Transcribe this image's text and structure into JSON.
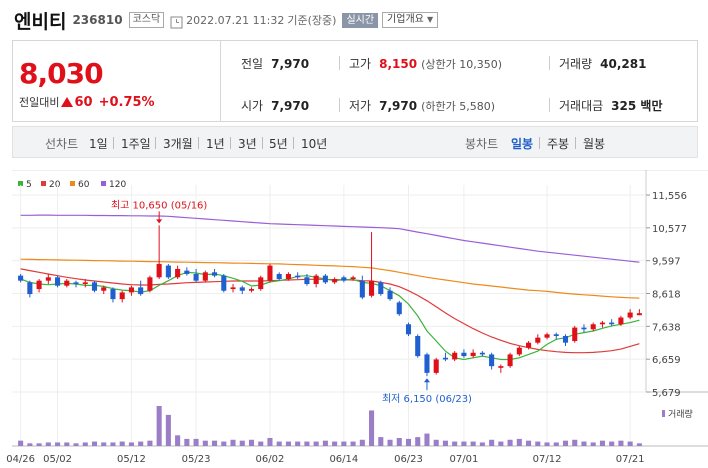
{
  "header": {
    "name": "엔비티",
    "code": "236810",
    "market": "코스닥",
    "datetime": "2022.07.21 11:32",
    "basis": "기준(장중)",
    "live_label": "실시간",
    "corp_label": "기업개요",
    "clock_icon": "clock-icon",
    "dropdown_icon": "chevron-down-icon"
  },
  "quote": {
    "price": "8,030",
    "change_label": "전일대비",
    "change": "60",
    "change_pct": "+0.75%",
    "up_icon": "triangle-up-icon",
    "prev_close_label": "전일",
    "prev_close": "7,970",
    "high_label": "고가",
    "high": "8,150",
    "upper_limit": "(상한가 10,350)",
    "volume_label": "거래량",
    "volume": "40,281",
    "open_label": "시가",
    "open": "7,970",
    "low_label": "저가",
    "low": "7,970",
    "lower_limit": "(하한가 5,580)",
    "amount_label": "거래대금",
    "amount": "325 백만"
  },
  "tabs": {
    "line_label": "선차트",
    "line_periods": [
      "1일",
      "1주일",
      "3개월",
      "1년",
      "3년",
      "5년",
      "10년"
    ],
    "candle_label": "봉차트",
    "candle_periods": [
      "일봉",
      "주봉",
      "월봉"
    ],
    "candle_active": "일봉"
  },
  "colors": {
    "up": "#e0101a",
    "down": "#1f5fd0",
    "ma5": "#3cb33c",
    "ma20": "#e03a3a",
    "ma60": "#ee8a1a",
    "ma120": "#9a5ed8",
    "volume": "#9a7ec8"
  },
  "chart_data": {
    "type": "candlestick",
    "legend": [
      "5",
      "20",
      "60",
      "120"
    ],
    "y_ticks": [
      "11,556",
      "10,577",
      "9,597",
      "8,618",
      "7,638",
      "6,659",
      "5,679"
    ],
    "ylim": [
      5679,
      11556
    ],
    "x_ticks": [
      "04/26",
      "05/02",
      "05/12",
      "05/23",
      "06/02",
      "06/14",
      "06/23",
      "07/01",
      "07/12",
      "07/21"
    ],
    "high_annotation": "최고 10,650 (05/16)",
    "low_annotation": "최저 6,150 (06/23)",
    "volume_label": "거래량",
    "candles": [
      {
        "o": 9150,
        "h": 9200,
        "l": 8950,
        "c": 9000
      },
      {
        "o": 8950,
        "h": 9000,
        "l": 8500,
        "c": 8600
      },
      {
        "o": 8750,
        "h": 9050,
        "l": 8650,
        "c": 9000
      },
      {
        "o": 9000,
        "h": 9200,
        "l": 8900,
        "c": 9100
      },
      {
        "o": 9100,
        "h": 9150,
        "l": 8800,
        "c": 8850
      },
      {
        "o": 8850,
        "h": 9050,
        "l": 8800,
        "c": 9000
      },
      {
        "o": 8950,
        "h": 9000,
        "l": 8800,
        "c": 8900
      },
      {
        "o": 8900,
        "h": 9050,
        "l": 8800,
        "c": 8950
      },
      {
        "o": 8950,
        "h": 9000,
        "l": 8650,
        "c": 8700
      },
      {
        "o": 8700,
        "h": 8850,
        "l": 8600,
        "c": 8800
      },
      {
        "o": 8750,
        "h": 8800,
        "l": 8350,
        "c": 8450
      },
      {
        "o": 8450,
        "h": 8700,
        "l": 8350,
        "c": 8650
      },
      {
        "o": 8650,
        "h": 8850,
        "l": 8550,
        "c": 8800
      },
      {
        "o": 8800,
        "h": 9000,
        "l": 8550,
        "c": 8600
      },
      {
        "o": 8700,
        "h": 9150,
        "l": 8650,
        "c": 9100
      },
      {
        "o": 9100,
        "h": 10650,
        "l": 9050,
        "c": 9500
      },
      {
        "o": 9450,
        "h": 9500,
        "l": 9050,
        "c": 9100
      },
      {
        "o": 9100,
        "h": 9450,
        "l": 9050,
        "c": 9350
      },
      {
        "o": 9300,
        "h": 9400,
        "l": 9150,
        "c": 9200
      },
      {
        "o": 9200,
        "h": 9350,
        "l": 8950,
        "c": 9000
      },
      {
        "o": 9000,
        "h": 9300,
        "l": 8950,
        "c": 9250
      },
      {
        "o": 9250,
        "h": 9350,
        "l": 9100,
        "c": 9150
      },
      {
        "o": 9150,
        "h": 9200,
        "l": 8650,
        "c": 8700
      },
      {
        "o": 8750,
        "h": 8900,
        "l": 8650,
        "c": 8800
      },
      {
        "o": 8800,
        "h": 8850,
        "l": 8600,
        "c": 8700
      },
      {
        "o": 8700,
        "h": 8800,
        "l": 8650,
        "c": 8750
      },
      {
        "o": 8750,
        "h": 9150,
        "l": 8700,
        "c": 9100
      },
      {
        "o": 9000,
        "h": 9500,
        "l": 8950,
        "c": 9450
      },
      {
        "o": 9200,
        "h": 9250,
        "l": 9000,
        "c": 9050
      },
      {
        "o": 9050,
        "h": 9250,
        "l": 9000,
        "c": 9200
      },
      {
        "o": 9150,
        "h": 9250,
        "l": 9050,
        "c": 9100
      },
      {
        "o": 9100,
        "h": 9200,
        "l": 8850,
        "c": 8900
      },
      {
        "o": 8900,
        "h": 9200,
        "l": 8800,
        "c": 9150
      },
      {
        "o": 9150,
        "h": 9200,
        "l": 8900,
        "c": 8950
      },
      {
        "o": 8950,
        "h": 9100,
        "l": 8900,
        "c": 9050
      },
      {
        "o": 9100,
        "h": 9150,
        "l": 8950,
        "c": 9000
      },
      {
        "o": 9050,
        "h": 9150,
        "l": 9000,
        "c": 9100
      },
      {
        "o": 9000,
        "h": 9150,
        "l": 8450,
        "c": 8500
      },
      {
        "o": 8550,
        "h": 10450,
        "l": 8500,
        "c": 9000
      },
      {
        "o": 8950,
        "h": 9000,
        "l": 8550,
        "c": 8600
      },
      {
        "o": 8700,
        "h": 8800,
        "l": 8400,
        "c": 8450
      },
      {
        "o": 8350,
        "h": 8400,
        "l": 7950,
        "c": 8000
      },
      {
        "o": 7700,
        "h": 7750,
        "l": 7350,
        "c": 7400
      },
      {
        "o": 7350,
        "h": 7400,
        "l": 6700,
        "c": 6750
      },
      {
        "o": 6800,
        "h": 6850,
        "l": 6150,
        "c": 6250
      },
      {
        "o": 6250,
        "h": 6700,
        "l": 6200,
        "c": 6650
      },
      {
        "o": 6700,
        "h": 6850,
        "l": 6600,
        "c": 6650
      },
      {
        "o": 6650,
        "h": 6900,
        "l": 6600,
        "c": 6850
      },
      {
        "o": 6850,
        "h": 6950,
        "l": 6700,
        "c": 6750
      },
      {
        "o": 6750,
        "h": 6950,
        "l": 6700,
        "c": 6850
      },
      {
        "o": 6850,
        "h": 6900,
        "l": 6750,
        "c": 6800
      },
      {
        "o": 6800,
        "h": 6850,
        "l": 6350,
        "c": 6450
      },
      {
        "o": 6400,
        "h": 6500,
        "l": 6250,
        "c": 6450
      },
      {
        "o": 6450,
        "h": 6850,
        "l": 6400,
        "c": 6800
      },
      {
        "o": 6800,
        "h": 7050,
        "l": 6750,
        "c": 7000
      },
      {
        "o": 7000,
        "h": 7200,
        "l": 6950,
        "c": 7150
      },
      {
        "o": 7150,
        "h": 7400,
        "l": 7100,
        "c": 7300
      },
      {
        "o": 7300,
        "h": 7450,
        "l": 7250,
        "c": 7400
      },
      {
        "o": 7400,
        "h": 7450,
        "l": 7250,
        "c": 7350
      },
      {
        "o": 7350,
        "h": 7400,
        "l": 7050,
        "c": 7150
      },
      {
        "o": 7200,
        "h": 7650,
        "l": 7150,
        "c": 7600
      },
      {
        "o": 7600,
        "h": 7700,
        "l": 7450,
        "c": 7550
      },
      {
        "o": 7550,
        "h": 7750,
        "l": 7500,
        "c": 7700
      },
      {
        "o": 7700,
        "h": 7800,
        "l": 7600,
        "c": 7750
      },
      {
        "o": 7750,
        "h": 7850,
        "l": 7650,
        "c": 7700
      },
      {
        "o": 7700,
        "h": 7950,
        "l": 7650,
        "c": 7900
      },
      {
        "o": 7900,
        "h": 8150,
        "l": 7850,
        "c": 8050
      },
      {
        "o": 7970,
        "h": 8150,
        "l": 7970,
        "c": 8030
      }
    ],
    "ma5": [
      9050,
      8950,
      8900,
      8880,
      8900,
      8920,
      8900,
      8860,
      8860,
      8830,
      8760,
      8720,
      8700,
      8660,
      8700,
      8860,
      9000,
      9150,
      9250,
      9230,
      9180,
      9200,
      9150,
      9070,
      8980,
      8840,
      8870,
      8960,
      9000,
      9050,
      9130,
      9150,
      9100,
      9050,
      9000,
      9030,
      9040,
      8950,
      8920,
      8850,
      8700,
      8550,
      8300,
      7950,
      7500,
      7200,
      6900,
      6700,
      6650,
      6700,
      6750,
      6700,
      6650,
      6650,
      6700,
      6800,
      6900,
      7100,
      7250,
      7300,
      7400,
      7450,
      7500,
      7580,
      7650,
      7700,
      7750,
      7820
    ],
    "ma20": [
      9350,
      9300,
      9250,
      9200,
      9150,
      9100,
      9060,
      9020,
      8990,
      8960,
      8930,
      8900,
      8880,
      8870,
      8870,
      8890,
      8900,
      8920,
      8940,
      8950,
      8960,
      8970,
      8980,
      8990,
      8990,
      8990,
      8990,
      9000,
      9010,
      9020,
      9030,
      9040,
      9040,
      9040,
      9030,
      9030,
      9020,
      9000,
      8990,
      8950,
      8900,
      8820,
      8700,
      8560,
      8400,
      8220,
      8040,
      7870,
      7720,
      7570,
      7440,
      7320,
      7220,
      7130,
      7060,
      7000,
      6950,
      6910,
      6880,
      6860,
      6850,
      6850,
      6860,
      6880,
      6910,
      6960,
      7040,
      7120
    ],
    "ma60": [
      9640,
      9635,
      9630,
      9625,
      9620,
      9615,
      9610,
      9605,
      9600,
      9595,
      9590,
      9585,
      9580,
      9575,
      9570,
      9565,
      9560,
      9555,
      9550,
      9545,
      9540,
      9535,
      9530,
      9525,
      9520,
      9515,
      9510,
      9505,
      9500,
      9490,
      9480,
      9470,
      9460,
      9450,
      9440,
      9430,
      9420,
      9400,
      9380,
      9340,
      9300,
      9250,
      9200,
      9150,
      9100,
      9060,
      9020,
      8980,
      8940,
      8900,
      8870,
      8840,
      8810,
      8780,
      8750,
      8720,
      8700,
      8680,
      8650,
      8620,
      8600,
      8580,
      8560,
      8540,
      8520,
      8500,
      8490,
      8480
    ],
    "ma120": [
      10950,
      10950,
      10955,
      10955,
      10950,
      10950,
      10950,
      10950,
      10945,
      10945,
      10940,
      10940,
      10935,
      10935,
      10930,
      10930,
      10920,
      10900,
      10880,
      10860,
      10840,
      10820,
      10800,
      10780,
      10760,
      10740,
      10720,
      10700,
      10690,
      10680,
      10670,
      10660,
      10650,
      10640,
      10630,
      10620,
      10610,
      10600,
      10590,
      10580,
      10570,
      10550,
      10500,
      10450,
      10400,
      10350,
      10300,
      10250,
      10200,
      10160,
      10120,
      10080,
      10040,
      10000,
      9960,
      9920,
      9880,
      9850,
      9820,
      9790,
      9760,
      9730,
      9700,
      9670,
      9640,
      9610,
      9580,
      9550
    ],
    "volumes": [
      0.06,
      0.03,
      0.03,
      0.04,
      0.04,
      0.04,
      0.03,
      0.04,
      0.05,
      0.04,
      0.04,
      0.05,
      0.04,
      0.05,
      0.06,
      0.45,
      0.35,
      0.12,
      0.08,
      0.08,
      0.06,
      0.06,
      0.05,
      0.07,
      0.06,
      0.07,
      0.05,
      0.09,
      0.05,
      0.05,
      0.05,
      0.05,
      0.05,
      0.06,
      0.05,
      0.05,
      0.05,
      0.07,
      0.4,
      0.1,
      0.07,
      0.09,
      0.08,
      0.1,
      0.14,
      0.07,
      0.06,
      0.05,
      0.05,
      0.05,
      0.04,
      0.07,
      0.05,
      0.07,
      0.08,
      0.06,
      0.05,
      0.04,
      0.04,
      0.06,
      0.07,
      0.05,
      0.04,
      0.06,
      0.05,
      0.06,
      0.05,
      0.03
    ]
  }
}
